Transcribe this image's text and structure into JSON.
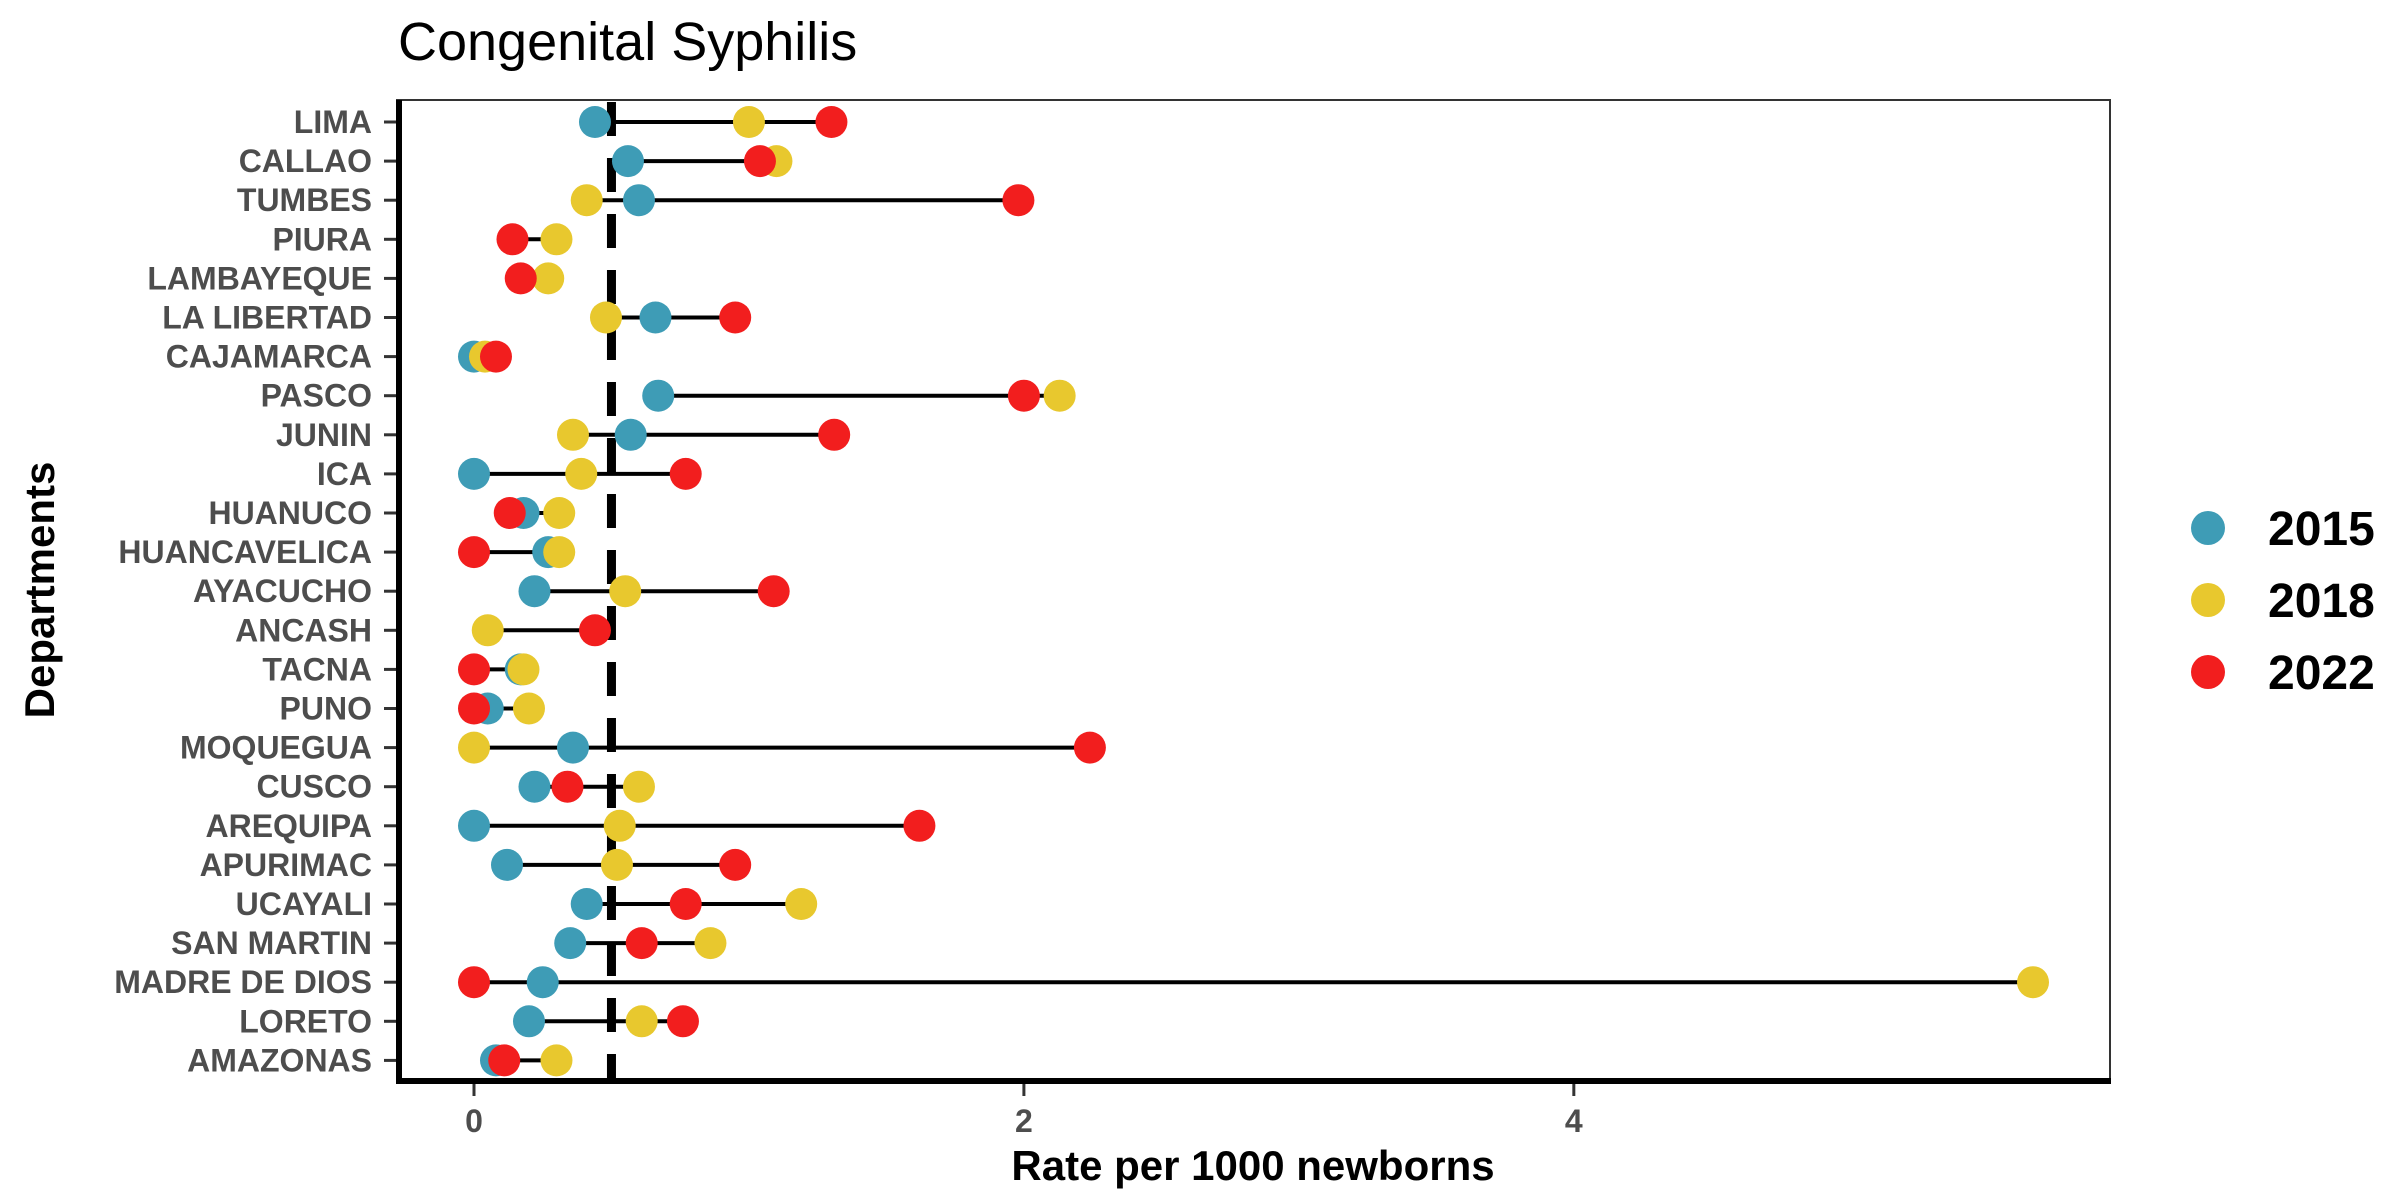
{
  "chart_data": {
    "type": "dumbbell",
    "title": "Congenital Syphilis",
    "xlabel": "Rate per 1000 newborns",
    "ylabel": "Departments",
    "xlim": [
      -0.28,
      5.95
    ],
    "xticks": [
      0,
      2,
      4
    ],
    "reference_line": 0.5,
    "legend_position": "right",
    "grid": false,
    "categories": [
      "LIMA",
      "CALLAO",
      "TUMBES",
      "PIURA",
      "LAMBAYEQUE",
      "LA LIBERTAD",
      "CAJAMARCA",
      "PASCO",
      "JUNIN",
      "ICA",
      "HUANUCO",
      "HUANCAVELICA",
      "AYACUCHO",
      "ANCASH",
      "TACNA",
      "PUNO",
      "MOQUEGUA",
      "CUSCO",
      "AREQUIPA",
      "APURIMAC",
      "UCAYALI",
      "SAN MARTIN",
      "MADRE DE DIOS",
      "LORETO",
      "AMAZONAS"
    ],
    "series": [
      {
        "name": "2015",
        "color": "#3E9CB6",
        "values": [
          0.44,
          0.56,
          0.6,
          null,
          null,
          0.66,
          0.0,
          0.67,
          0.57,
          0.0,
          0.18,
          0.27,
          0.22,
          null,
          0.17,
          0.05,
          0.36,
          0.22,
          0.0,
          0.12,
          0.41,
          0.35,
          0.25,
          0.2,
          0.08
        ]
      },
      {
        "name": "2018",
        "color": "#E8C82E",
        "values": [
          1.0,
          1.1,
          0.41,
          0.3,
          0.27,
          0.48,
          0.04,
          2.13,
          0.36,
          0.39,
          0.31,
          0.31,
          0.55,
          0.05,
          0.18,
          0.2,
          0.0,
          0.6,
          0.53,
          0.52,
          1.19,
          0.86,
          5.67,
          0.61,
          0.3
        ]
      },
      {
        "name": "2022",
        "color": "#F21E1E",
        "values": [
          1.3,
          1.04,
          1.98,
          0.14,
          0.17,
          0.95,
          0.08,
          2.0,
          1.31,
          0.77,
          0.13,
          0.0,
          1.09,
          0.44,
          0.0,
          0.0,
          2.24,
          0.34,
          1.62,
          0.95,
          0.77,
          0.61,
          0.0,
          0.76,
          0.11
        ]
      }
    ]
  }
}
